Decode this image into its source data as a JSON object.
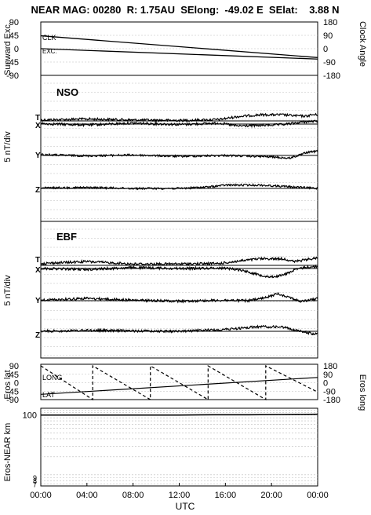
{
  "header": {
    "title": "NEAR MAG: 00280  R: 1.75AU  SElong:  -49.02 E  SElat:    3.88 N"
  },
  "x_axis": {
    "label": "UTC",
    "ticks": [
      "00:00",
      "04:00",
      "08:00",
      "12:00",
      "16:00",
      "20:00",
      "00:00"
    ],
    "range_hours": [
      0,
      24
    ]
  },
  "panel1": {
    "ylabel_left": "Sunward Exc.",
    "ylabel_right": "Clock Angle",
    "left_ticks": [
      "90",
      "45",
      "0",
      "-45",
      "-90"
    ],
    "right_ticks": [
      "180",
      "90",
      "0",
      "-90",
      "-180"
    ],
    "trace_labels": [
      "CLK",
      "EXC."
    ]
  },
  "panel_nso": {
    "title": "NSO",
    "ylabel": "5 nT/div",
    "component_labels": [
      "T",
      "X",
      "Y",
      "Z"
    ]
  },
  "panel_ebf": {
    "title": "EBF",
    "ylabel": "5 nT/div",
    "component_labels": [
      "T",
      "X",
      "Y",
      "Z"
    ]
  },
  "panel_eros": {
    "ylabel_left": "Eros lat",
    "ylabel_right": "Eros long",
    "left_ticks": [
      "90",
      "45",
      "0",
      "-45",
      "-90"
    ],
    "right_ticks": [
      "180",
      "90",
      "0",
      "-90",
      "-180"
    ],
    "trace_labels": [
      "LONG",
      "LAT"
    ]
  },
  "panel_dist": {
    "ylabel": "Eros-NEAR km",
    "ticks": [
      "100",
      "9",
      "8",
      "7"
    ]
  },
  "chart_data": [
    {
      "type": "line",
      "title": "",
      "xlabel": "UTC",
      "xlim_hours": [
        0,
        24
      ],
      "ylim_left": [
        -90,
        90
      ],
      "ylim_right": [
        -180,
        180
      ],
      "series": [
        {
          "name": "CLK",
          "axis": "right",
          "x": [
            0,
            24
          ],
          "y": [
            87,
            -60
          ]
        },
        {
          "name": "EXC.",
          "axis": "left",
          "x": [
            0,
            24
          ],
          "y": [
            0,
            -35
          ]
        }
      ]
    },
    {
      "type": "line",
      "title": "NSO",
      "ylabel": "5 nT/div",
      "series": [
        {
          "name": "T",
          "x": [
            0,
            4,
            8,
            12,
            15.5,
            17,
            19,
            21,
            22,
            23,
            23.5,
            24
          ],
          "y": [
            0.2,
            0.4,
            0.2,
            0.1,
            0.3,
            0.9,
            1.3,
            1.3,
            1.1,
            1.0,
            1.3,
            1.3
          ]
        },
        {
          "name": "X",
          "x": [
            0,
            4,
            8,
            12,
            15.5,
            17,
            19,
            21,
            23,
            24
          ],
          "y": [
            0.1,
            -0.2,
            0.2,
            -0.1,
            0.2,
            -0.4,
            -0.3,
            -0.1,
            0.5,
            0.6
          ]
        },
        {
          "name": "Y",
          "x": [
            0,
            4,
            8,
            12,
            16,
            20,
            21.5,
            22.5,
            23,
            24
          ],
          "y": [
            0.2,
            -0.1,
            0.1,
            -0.2,
            0.0,
            -0.3,
            -0.6,
            0.1,
            0.6,
            0.9
          ]
        },
        {
          "name": "Z",
          "x": [
            0,
            4,
            8,
            12,
            14.5,
            16,
            19,
            22,
            24
          ],
          "y": [
            0.1,
            0.2,
            0.0,
            0.0,
            0.3,
            0.7,
            0.7,
            0.3,
            0.0
          ]
        }
      ]
    },
    {
      "type": "line",
      "title": "EBF",
      "ylabel": "5 nT/div",
      "series": [
        {
          "name": "T",
          "x": [
            0,
            4,
            8,
            12,
            15.5,
            17.5,
            19,
            21,
            22,
            23,
            24
          ],
          "y": [
            0.4,
            0.8,
            0.3,
            0.3,
            0.4,
            1.0,
            1.4,
            1.4,
            0.8,
            1.2,
            1.6
          ]
        },
        {
          "name": "X",
          "x": [
            0,
            4,
            8,
            12,
            16,
            17.5,
            19,
            20,
            21,
            22,
            23,
            24
          ],
          "y": [
            0.0,
            -0.2,
            0.2,
            0.0,
            0.1,
            -0.4,
            -1.4,
            -1.8,
            -1.4,
            -0.3,
            0.3,
            0.4
          ]
        },
        {
          "name": "Y",
          "x": [
            0,
            4,
            8,
            12,
            16,
            18,
            19.5,
            20.5,
            21.5,
            22.5,
            23.5,
            24
          ],
          "y": [
            0.1,
            0.5,
            0.1,
            -0.1,
            0.1,
            0.0,
            0.6,
            1.5,
            0.8,
            -0.2,
            0.2,
            0.5
          ]
        },
        {
          "name": "Z",
          "x": [
            0,
            4,
            8,
            12,
            16,
            19,
            21,
            22.5,
            23.5,
            24
          ],
          "y": [
            0.0,
            0.2,
            0.1,
            0.0,
            0.4,
            1.0,
            0.9,
            0.0,
            -0.5,
            -0.6
          ]
        }
      ]
    },
    {
      "type": "line",
      "title": "",
      "xlabel": "UTC",
      "ylim_left": [
        -90,
        90
      ],
      "ylim_right": [
        -180,
        180
      ],
      "series": [
        {
          "name": "LAT",
          "axis": "left",
          "x": [
            0,
            24
          ],
          "y": [
            -62,
            28
          ]
        },
        {
          "name": "LONG",
          "axis": "right",
          "x": [
            0,
            4.5,
            4.5,
            9.5,
            9.5,
            14.5,
            14.5,
            19.5,
            19.5,
            24
          ],
          "y": [
            180,
            -180,
            180,
            -180,
            180,
            -180,
            180,
            -180,
            180,
            -100
          ],
          "style": "dashed"
        }
      ]
    },
    {
      "type": "line",
      "title": "",
      "ylabel": "Eros-NEAR km",
      "scale": "log",
      "ylim": [
        6.5,
        130
      ],
      "series": [
        {
          "name": "Eros-NEAR",
          "x": [
            0,
            8,
            12,
            15,
            18,
            21,
            24
          ],
          "y": [
            100,
            100,
            100,
            101,
            101,
            102,
            103
          ]
        }
      ]
    }
  ]
}
